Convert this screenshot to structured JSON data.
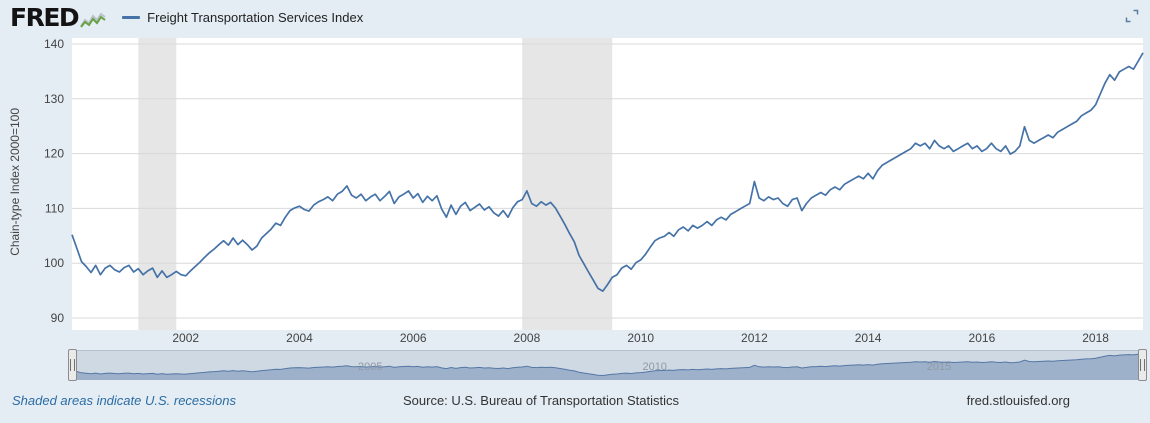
{
  "header": {
    "brand": "FRED",
    "legend_label": "Freight Transportation Services Index"
  },
  "colors": {
    "background": "#e4edf4",
    "accent_blue": "#4572a7"
  },
  "icons": {
    "fred_sparkline": "sparkline-chart-glyph",
    "expand": "fullscreen-corner-brackets",
    "slider_handles": "vertical-grip-bars"
  },
  "chart_data": {
    "type": "line",
    "title": "Freight Transportation Services Index",
    "xlabel": "",
    "ylabel": "Chain-type Index 2000=100",
    "ylim": [
      90,
      140
    ],
    "yticks": [
      90,
      100,
      110,
      120,
      130,
      140
    ],
    "xticks": [
      2002,
      2004,
      2006,
      2008,
      2010,
      2012,
      2014,
      2016,
      2018
    ],
    "grid": "horizontal",
    "legend_position": "top-left",
    "line_color": "#4572a7",
    "recession_color": "#e6e6e6",
    "grid_color": "#d9d9d9",
    "recession_bands": [
      [
        2001.167,
        2001.833
      ],
      [
        2007.917,
        2009.5
      ]
    ],
    "x_start": 2000.0,
    "frequency_per_year": 12,
    "values": [
      105.2,
      102.8,
      100.3,
      99.4,
      98.3,
      99.6,
      97.9,
      99.1,
      99.6,
      98.8,
      98.4,
      99.2,
      99.6,
      98.4,
      99.0,
      97.9,
      98.6,
      99.1,
      97.4,
      98.6,
      97.4,
      97.9,
      98.5,
      97.9,
      97.7,
      98.6,
      99.4,
      100.2,
      101.1,
      101.9,
      102.6,
      103.4,
      104.1,
      103.3,
      104.6,
      103.4,
      104.2,
      103.4,
      102.4,
      103.1,
      104.6,
      105.4,
      106.2,
      107.3,
      106.9,
      108.4,
      109.6,
      110.1,
      110.4,
      109.8,
      109.5,
      110.6,
      111.2,
      111.6,
      112.1,
      111.4,
      112.6,
      113.1,
      114.1,
      112.4,
      111.9,
      112.6,
      111.4,
      112.1,
      112.6,
      111.4,
      112.2,
      113.1,
      110.9,
      112.1,
      112.6,
      113.2,
      111.9,
      112.7,
      111.1,
      112.2,
      111.4,
      112.3,
      109.9,
      108.4,
      110.6,
      108.9,
      110.4,
      111.1,
      109.6,
      110.2,
      110.8,
      109.7,
      110.3,
      109.2,
      108.6,
      109.6,
      108.4,
      110.1,
      111.2,
      111.6,
      113.2,
      110.9,
      110.4,
      111.2,
      110.6,
      111.1,
      110.1,
      108.6,
      107.1,
      105.4,
      103.9,
      101.4,
      99.9,
      98.4,
      96.9,
      95.4,
      94.9,
      96.1,
      97.4,
      97.9,
      99.1,
      99.6,
      98.9,
      100.1,
      100.6,
      101.6,
      102.9,
      104.1,
      104.6,
      104.9,
      105.6,
      104.9,
      106.1,
      106.6,
      105.9,
      106.9,
      106.4,
      106.9,
      107.6,
      106.9,
      107.9,
      108.4,
      107.9,
      108.9,
      109.4,
      109.9,
      110.4,
      110.9,
      114.9,
      111.9,
      111.4,
      112.1,
      111.6,
      111.9,
      110.9,
      110.4,
      111.6,
      111.9,
      109.6,
      110.9,
      111.9,
      112.4,
      112.9,
      112.4,
      113.4,
      113.9,
      113.4,
      114.4,
      114.9,
      115.4,
      115.9,
      115.4,
      116.4,
      115.4,
      116.9,
      117.9,
      118.4,
      118.9,
      119.4,
      119.9,
      120.4,
      120.9,
      121.9,
      121.4,
      121.9,
      120.9,
      122.4,
      121.4,
      120.9,
      121.4,
      120.4,
      120.9,
      121.4,
      121.9,
      120.9,
      121.4,
      120.4,
      120.9,
      121.9,
      120.9,
      120.4,
      121.4,
      119.9,
      120.4,
      121.4,
      124.9,
      122.4,
      121.9,
      122.4,
      122.9,
      123.4,
      122.9,
      123.9,
      124.4,
      124.9,
      125.4,
      125.9,
      126.9,
      127.4,
      127.9,
      128.9,
      130.9,
      132.9,
      134.4,
      133.4,
      134.9,
      135.4,
      135.9,
      135.4,
      136.9,
      138.4
    ]
  },
  "slider": {
    "labels": [
      "2005",
      "2010",
      "2015"
    ],
    "track_color": "#cfd9e3",
    "area_color": "#9db1cb",
    "line_color": "#5577a5"
  },
  "footer": {
    "note": "Shaded areas indicate U.S. recessions",
    "source": "Source: U.S. Bureau of Transportation Statistics",
    "site": "fred.stlouisfed.org"
  }
}
